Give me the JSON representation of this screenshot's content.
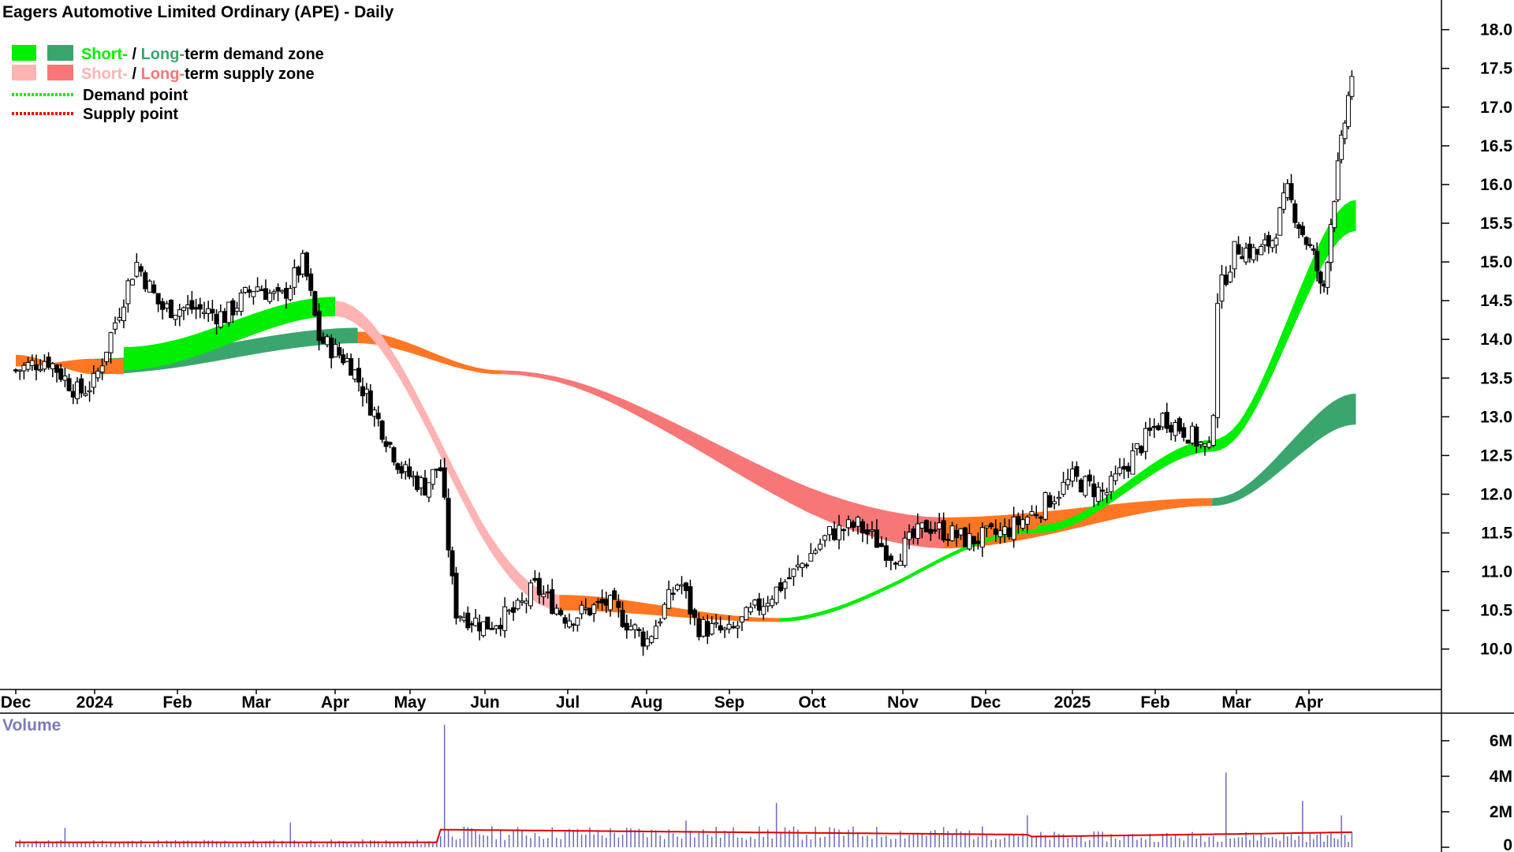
{
  "title": "Eagers Automotive Limited Ordinary (APE) - Daily",
  "legend": {
    "items": [
      {
        "short": "Short-",
        "sep": " / ",
        "long": "Long-",
        "rest": "term demand zone",
        "short_color": "#00ee00",
        "long_color": "#3aa66d"
      },
      {
        "short": "Short-",
        "sep": " / ",
        "long": "Long-",
        "rest": "term supply zone",
        "short_color": "#ffb3b3",
        "long_color": "#f77777"
      },
      {
        "label": "Demand point",
        "color": "#00ee00"
      },
      {
        "label": "Supply point",
        "color": "#ee0000"
      }
    ]
  },
  "volume_label": "Volume",
  "colors": {
    "short_demand": "#00ee00",
    "long_demand": "#3aa66d",
    "short_supply": "#ffb3b3",
    "long_supply": "#f77777",
    "neutral": "#ff7722",
    "volume_bar": "#6a6ab8",
    "volume_avg": "#dd0000"
  },
  "chart_data": {
    "type": "candlestick",
    "price_axis": {
      "ticks": [
        "10.0",
        "10.5",
        "11.0",
        "11.5",
        "12.0",
        "12.5",
        "13.0",
        "13.5",
        "14.0",
        "14.5",
        "15.0",
        "15.5",
        "16.0",
        "16.5",
        "17.0",
        "17.5",
        "18.0"
      ],
      "range": [
        9.6,
        18.2
      ]
    },
    "volume_axis": {
      "ticks": [
        "0",
        "2M",
        "4M",
        "6M"
      ],
      "range": [
        0,
        7200000
      ]
    },
    "x_axis": {
      "labels": [
        "Dec",
        "2024",
        "Feb",
        "Mar",
        "Apr",
        "May",
        "Jun",
        "Jul",
        "Aug",
        "Sep",
        "Oct",
        "Nov",
        "Dec",
        "2025",
        "Feb",
        "Mar",
        "Apr"
      ]
    },
    "price_path": [
      {
        "m": 0.0,
        "p": 13.6
      },
      {
        "m": 0.4,
        "p": 13.75
      },
      {
        "m": 0.8,
        "p": 13.3
      },
      {
        "m": 1.0,
        "p": 13.45
      },
      {
        "m": 1.4,
        "p": 14.7
      },
      {
        "m": 1.5,
        "p": 15.0
      },
      {
        "m": 1.8,
        "p": 14.4
      },
      {
        "m": 2.2,
        "p": 14.4
      },
      {
        "m": 2.6,
        "p": 14.3
      },
      {
        "m": 3.0,
        "p": 14.7
      },
      {
        "m": 3.3,
        "p": 14.5
      },
      {
        "m": 3.6,
        "p": 15.0
      },
      {
        "m": 3.8,
        "p": 14.0
      },
      {
        "m": 4.2,
        "p": 13.7
      },
      {
        "m": 4.5,
        "p": 13.1
      },
      {
        "m": 4.9,
        "p": 12.3
      },
      {
        "m": 5.2,
        "p": 12.1
      },
      {
        "m": 5.4,
        "p": 12.4
      },
      {
        "m": 5.6,
        "p": 10.5
      },
      {
        "m": 6.0,
        "p": 10.3
      },
      {
        "m": 6.4,
        "p": 10.5
      },
      {
        "m": 6.6,
        "p": 10.8
      },
      {
        "m": 7.0,
        "p": 10.4
      },
      {
        "m": 7.5,
        "p": 10.6
      },
      {
        "m": 8.0,
        "p": 10.1
      },
      {
        "m": 8.4,
        "p": 10.9
      },
      {
        "m": 8.6,
        "p": 10.3
      },
      {
        "m": 9.0,
        "p": 10.2
      },
      {
        "m": 9.4,
        "p": 10.6
      },
      {
        "m": 9.8,
        "p": 11.0
      },
      {
        "m": 10.2,
        "p": 11.5
      },
      {
        "m": 10.5,
        "p": 11.6
      },
      {
        "m": 10.9,
        "p": 11.2
      },
      {
        "m": 11.3,
        "p": 11.6
      },
      {
        "m": 11.8,
        "p": 11.4
      },
      {
        "m": 12.2,
        "p": 11.5
      },
      {
        "m": 12.6,
        "p": 11.8
      },
      {
        "m": 13.0,
        "p": 12.2
      },
      {
        "m": 13.4,
        "p": 12.0
      },
      {
        "m": 13.8,
        "p": 12.6
      },
      {
        "m": 14.1,
        "p": 13.0
      },
      {
        "m": 14.4,
        "p": 12.8
      },
      {
        "m": 14.7,
        "p": 12.5
      },
      {
        "m": 14.75,
        "p": 14.5
      },
      {
        "m": 15.0,
        "p": 15.2
      },
      {
        "m": 15.3,
        "p": 15.1
      },
      {
        "m": 15.5,
        "p": 15.3
      },
      {
        "m": 15.7,
        "p": 15.9
      },
      {
        "m": 15.9,
        "p": 15.4
      },
      {
        "m": 16.1,
        "p": 15.0
      },
      {
        "m": 16.2,
        "p": 14.5
      },
      {
        "m": 16.35,
        "p": 15.7
      },
      {
        "m": 16.5,
        "p": 16.6
      },
      {
        "m": 16.65,
        "p": 17.5
      }
    ],
    "zones": [
      {
        "kind": "short",
        "start_m": 0.0,
        "end_m": 1.35,
        "start": [
          13.75,
          13.65
        ],
        "end": [
          13.55,
          13.75
        ],
        "color": "neutral"
      },
      {
        "kind": "short",
        "start_m": 1.35,
        "end_m": 4.0,
        "start": [
          13.6,
          13.9
        ],
        "end": [
          14.3,
          14.55
        ],
        "color": "short_demand"
      },
      {
        "kind": "short",
        "start_m": 4.0,
        "end_m": 6.9,
        "start": [
          14.3,
          14.5
        ],
        "end": [
          10.5,
          10.7
        ],
        "color": "short_supply"
      },
      {
        "kind": "short",
        "start_m": 6.9,
        "end_m": 9.6,
        "start": [
          10.5,
          10.7
        ],
        "end": [
          10.35,
          10.4
        ],
        "color": "neutral"
      },
      {
        "kind": "short",
        "start_m": 9.6,
        "end_m": 12.6,
        "start": [
          10.35,
          10.4
        ],
        "end": [
          11.5,
          11.55
        ],
        "color": "short_demand"
      },
      {
        "kind": "short",
        "start_m": 12.6,
        "end_m": 14.7,
        "start": [
          11.5,
          11.6
        ],
        "end": [
          12.55,
          12.7
        ],
        "color": "short_demand"
      },
      {
        "kind": "short",
        "start_m": 14.7,
        "end_m": 16.7,
        "start": [
          12.55,
          12.7
        ],
        "end": [
          15.4,
          15.8
        ],
        "color": "short_demand"
      },
      {
        "kind": "long",
        "start_m": 0.0,
        "end_m": 1.0,
        "start": [
          13.8,
          13.65
        ],
        "end": [
          13.55,
          13.75
        ],
        "color": "neutral"
      },
      {
        "kind": "long",
        "start_m": 1.0,
        "end_m": 4.3,
        "start": [
          13.55,
          13.75
        ],
        "end": [
          13.95,
          14.15
        ],
        "color": "long_demand"
      },
      {
        "kind": "long",
        "start_m": 4.3,
        "end_m": 6.2,
        "start": [
          13.95,
          14.1
        ],
        "end": [
          13.55,
          13.6
        ],
        "color": "neutral"
      },
      {
        "kind": "long",
        "start_m": 6.2,
        "end_m": 11.5,
        "start": [
          13.55,
          13.6
        ],
        "end": [
          11.3,
          11.7
        ],
        "color": "long_supply"
      },
      {
        "kind": "long",
        "start_m": 11.5,
        "end_m": 14.7,
        "start": [
          11.3,
          11.7
        ],
        "end": [
          11.85,
          11.95
        ],
        "color": "neutral"
      },
      {
        "kind": "long",
        "start_m": 14.7,
        "end_m": 16.7,
        "start": [
          11.85,
          11.95
        ],
        "end": [
          12.9,
          13.3
        ],
        "color": "long_demand"
      }
    ]
  }
}
